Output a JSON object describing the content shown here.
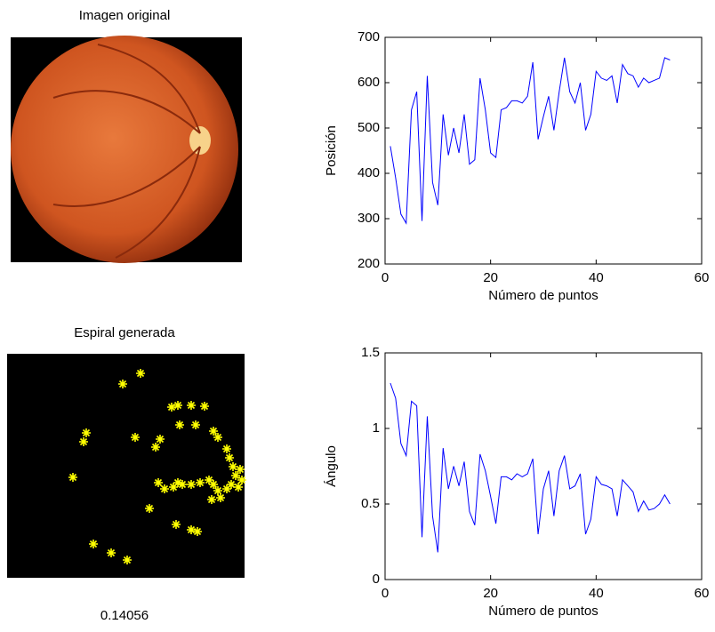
{
  "images": {
    "original": {
      "title": "Imagen original"
    },
    "spiral": {
      "title": "Espiral generada",
      "caption": "0.14056"
    }
  },
  "chart_data": [
    {
      "type": "line",
      "xlabel": "Número de puntos",
      "ylabel": "Posición",
      "xlim": [
        0,
        60
      ],
      "xticks": [
        0,
        20,
        40,
        60
      ],
      "ylim": [
        200,
        700
      ],
      "yticks": [
        200,
        300,
        400,
        500,
        600,
        700
      ],
      "x": [
        1,
        2,
        3,
        4,
        5,
        6,
        7,
        8,
        9,
        10,
        11,
        12,
        13,
        14,
        15,
        16,
        17,
        18,
        19,
        20,
        21,
        22,
        23,
        24,
        25,
        26,
        27,
        28,
        29,
        30,
        31,
        32,
        33,
        34,
        35,
        36,
        37,
        38,
        39,
        40,
        41,
        42,
        43,
        44,
        45,
        46,
        47,
        48,
        49,
        50,
        51,
        52,
        53,
        54
      ],
      "series": [
        {
          "color": "#0000ff",
          "values": [
            460,
            390,
            310,
            290,
            540,
            580,
            295,
            615,
            380,
            330,
            530,
            440,
            500,
            445,
            530,
            420,
            430,
            610,
            540,
            445,
            435,
            540,
            545,
            560,
            560,
            555,
            570,
            645,
            475,
            525,
            570,
            495,
            580,
            655,
            580,
            555,
            600,
            495,
            530,
            625,
            610,
            605,
            615,
            555,
            640,
            620,
            615,
            590,
            610,
            600,
            605,
            610,
            655,
            650
          ]
        }
      ]
    },
    {
      "type": "line",
      "xlabel": "Número de puntos",
      "ylabel": "Ángulo",
      "xlim": [
        0,
        60
      ],
      "xticks": [
        0,
        20,
        40,
        60
      ],
      "ylim": [
        0,
        1.5
      ],
      "yticks": [
        0,
        0.5,
        1,
        1.5
      ],
      "x": [
        1,
        2,
        3,
        4,
        5,
        6,
        7,
        8,
        9,
        10,
        11,
        12,
        13,
        14,
        15,
        16,
        17,
        18,
        19,
        20,
        21,
        22,
        23,
        24,
        25,
        26,
        27,
        28,
        29,
        30,
        31,
        32,
        33,
        34,
        35,
        36,
        37,
        38,
        39,
        40,
        41,
        42,
        43,
        44,
        45,
        46,
        47,
        48,
        49,
        50,
        51,
        52,
        53,
        54
      ],
      "series": [
        {
          "color": "#0000ff",
          "values": [
            1.3,
            1.2,
            0.9,
            0.82,
            1.18,
            1.15,
            0.28,
            1.08,
            0.42,
            0.18,
            0.87,
            0.6,
            0.75,
            0.62,
            0.78,
            0.45,
            0.36,
            0.83,
            0.72,
            0.55,
            0.37,
            0.68,
            0.68,
            0.66,
            0.7,
            0.68,
            0.7,
            0.8,
            0.3,
            0.6,
            0.72,
            0.42,
            0.72,
            0.82,
            0.6,
            0.62,
            0.7,
            0.3,
            0.4,
            0.68,
            0.63,
            0.62,
            0.6,
            0.42,
            0.66,
            0.62,
            0.58,
            0.45,
            0.52,
            0.46,
            0.47,
            0.5,
            0.56,
            0.5
          ]
        }
      ]
    }
  ]
}
